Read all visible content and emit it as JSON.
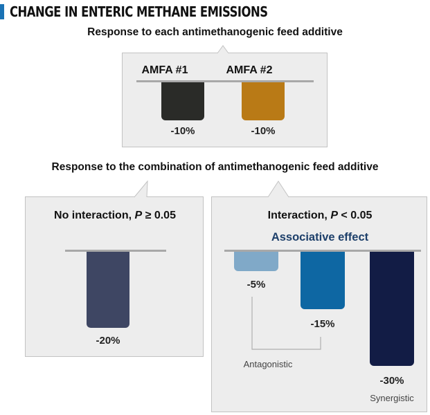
{
  "title": "CHANGE IN ENTERIC METHANE  EMISSIONS",
  "colors": {
    "accent": "#1a72b5",
    "amfa1": "#2a2b28",
    "amfa2": "#b97a16",
    "no_interaction": "#3e4663",
    "antagonistic": "#80a9c8",
    "mid": "#0e67a3",
    "synergistic": "#121c45",
    "associative_text": "#1d3f6a"
  },
  "section1": {
    "heading": "Response to each antimethanogenic feed additive"
  },
  "section2": {
    "heading": "Response to the combination of antimethanogenic feed additive",
    "left_panel": {
      "title_prefix": "No interaction, ",
      "title_p": "P",
      "title_suffix": " ≥ 0.05"
    },
    "right_panel": {
      "title_prefix": "Interaction, ",
      "title_p": "P",
      "title_suffix": " < 0.05",
      "subtitle": "Associative effect",
      "antagonistic_label": "Antagonistic",
      "synergistic_label": "Synergistic"
    }
  },
  "chart_data": [
    {
      "type": "bar",
      "title": "Response to each antimethanogenic feed additive",
      "categories": [
        "AMFA #1",
        "AMFA #2"
      ],
      "values": [
        -10,
        -10
      ],
      "labels": [
        "-10%",
        "-10%"
      ],
      "ylim": [
        -30,
        0
      ]
    },
    {
      "type": "bar",
      "title": "No interaction, P ≥ 0.05",
      "values": [
        -20
      ],
      "labels": [
        "-20%"
      ],
      "ylim": [
        -30,
        0
      ]
    },
    {
      "type": "bar",
      "title": "Interaction, P < 0.05",
      "subtitle": "Associative effect",
      "values": [
        -5,
        -15,
        -30
      ],
      "labels": [
        "-5%",
        "-15%",
        "-30%"
      ],
      "annotations": [
        "Antagonistic",
        "Synergistic"
      ],
      "ylim": [
        -30,
        0
      ]
    }
  ]
}
